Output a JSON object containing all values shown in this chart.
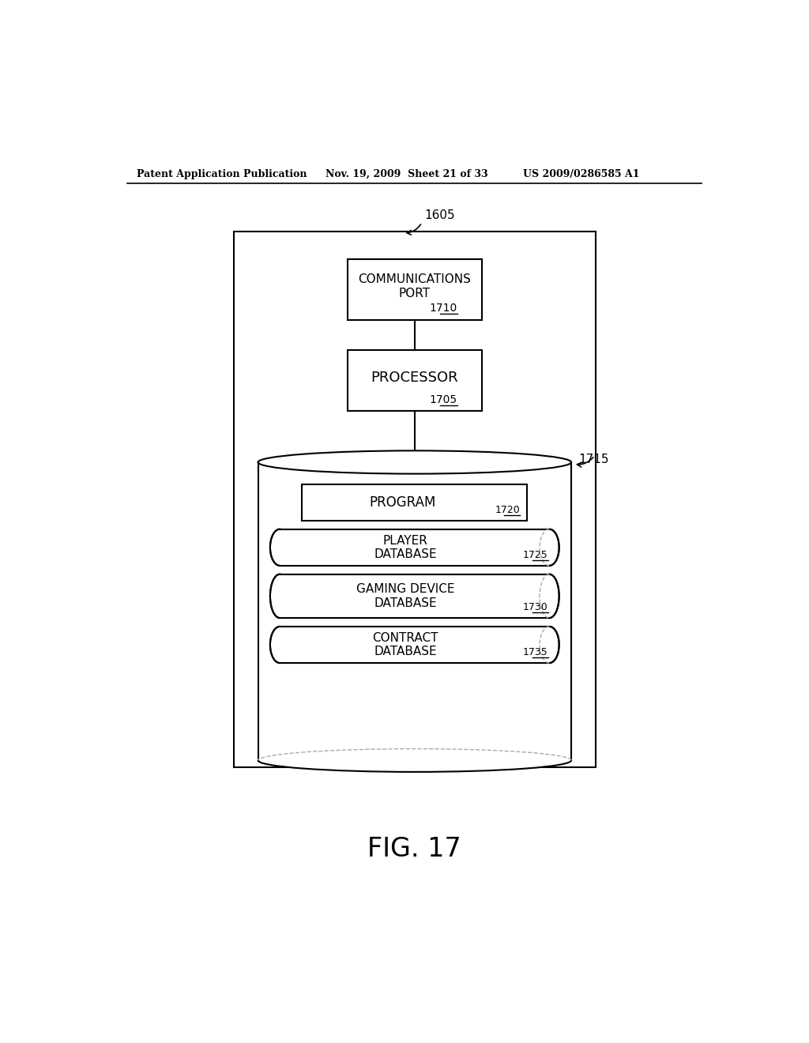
{
  "header_left": "Patent Application Publication",
  "header_mid": "Nov. 19, 2009  Sheet 21 of 33",
  "header_right": "US 2009/0286585 A1",
  "fig_label": "FIG. 17",
  "outer_box_label": "1605",
  "comm_port_label": "COMMUNICATIONS\nPORT",
  "comm_port_num": "1710",
  "processor_label": "PROCESSOR",
  "processor_num": "1705",
  "storage_label": "1715",
  "program_label": "PROGRAM",
  "program_num": "1720",
  "player_db_label": "PLAYER\nDATABASE",
  "player_db_num": "1725",
  "gaming_db_label": "GAMING DEVICE\nDATABASE",
  "gaming_db_num": "1730",
  "contract_db_label": "CONTRACT\nDATABASE",
  "contract_db_num": "1735",
  "bg_color": "#ffffff",
  "line_color": "#000000",
  "font_color": "#000000"
}
